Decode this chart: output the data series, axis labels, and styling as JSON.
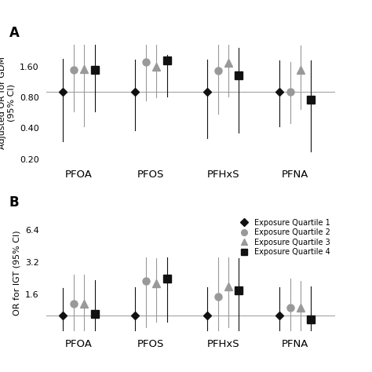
{
  "chemicals": [
    "PFOA",
    "PFOS",
    "PFHxS",
    "PFNA"
  ],
  "panel_A": {
    "ylabel": "Adjusted OR for GDM\n(95% CI)",
    "ref_line": 0.9,
    "ylim": [
      0.19,
      2.6
    ],
    "yticks": [
      0.4,
      0.8,
      1.6
    ],
    "ytick_labels": [
      "0.40",
      "0.80",
      "1.60"
    ],
    "extra_tick": 0.2,
    "extra_tick_label": "0.20",
    "data": {
      "PFOA": {
        "Q1": {
          "or": 0.9,
          "lo": 0.3,
          "hi": 1.9
        },
        "Q2": {
          "or": 1.48,
          "lo": 0.58,
          "hi": 2.8
        },
        "Q3": {
          "or": 1.5,
          "lo": 0.42,
          "hi": 2.9
        },
        "Q4": {
          "or": 1.48,
          "lo": 0.58,
          "hi": 2.8
        }
      },
      "PFOS": {
        "Q1": {
          "or": 0.9,
          "lo": 0.38,
          "hi": 1.85
        },
        "Q2": {
          "or": 1.75,
          "lo": 0.75,
          "hi": 2.95
        },
        "Q3": {
          "or": 1.6,
          "lo": 0.8,
          "hi": 2.75
        },
        "Q4": {
          "or": 1.82,
          "lo": 0.82,
          "hi": 2.05
        }
      },
      "PFHxS": {
        "Q1": {
          "or": 0.9,
          "lo": 0.32,
          "hi": 1.85
        },
        "Q2": {
          "or": 1.46,
          "lo": 0.55,
          "hi": 2.8
        },
        "Q3": {
          "or": 1.72,
          "lo": 0.82,
          "hi": 2.85
        },
        "Q4": {
          "or": 1.3,
          "lo": 0.36,
          "hi": 2.4
        }
      },
      "PFNA": {
        "Q1": {
          "or": 0.9,
          "lo": 0.42,
          "hi": 1.82
        },
        "Q2": {
          "or": 0.9,
          "lo": 0.45,
          "hi": 1.75
        },
        "Q3": {
          "or": 1.48,
          "lo": 0.62,
          "hi": 2.55
        },
        "Q4": {
          "or": 0.76,
          "lo": 0.24,
          "hi": 1.82
        }
      }
    }
  },
  "panel_B": {
    "ylabel": "OR for IGT (95% CI)",
    "ref_line": 1.0,
    "ylim": [
      0.72,
      9.0
    ],
    "yticks": [
      1.6,
      3.2,
      6.4
    ],
    "ytick_labels": [
      "1.6",
      "3.2",
      "6.4"
    ],
    "data": {
      "PFOA": {
        "Q1": {
          "or": 1.0,
          "lo": 0.55,
          "hi": 1.82
        },
        "Q2": {
          "or": 1.3,
          "lo": 0.6,
          "hi": 2.45
        },
        "Q3": {
          "or": 1.3,
          "lo": 0.58,
          "hi": 2.42
        },
        "Q4": {
          "or": 1.05,
          "lo": 0.52,
          "hi": 2.15
        }
      },
      "PFOS": {
        "Q1": {
          "or": 1.0,
          "lo": 0.52,
          "hi": 1.85
        },
        "Q2": {
          "or": 2.12,
          "lo": 0.78,
          "hi": 3.55
        },
        "Q3": {
          "or": 2.02,
          "lo": 0.88,
          "hi": 3.45
        },
        "Q4": {
          "or": 2.25,
          "lo": 0.88,
          "hi": 3.55
        }
      },
      "PFHxS": {
        "Q1": {
          "or": 1.0,
          "lo": 0.52,
          "hi": 1.85
        },
        "Q2": {
          "or": 1.52,
          "lo": 0.68,
          "hi": 3.55
        },
        "Q3": {
          "or": 1.88,
          "lo": 0.78,
          "hi": 3.55
        },
        "Q4": {
          "or": 1.72,
          "lo": 0.7,
          "hi": 3.45
        }
      },
      "PFNA": {
        "Q1": {
          "or": 1.0,
          "lo": 0.52,
          "hi": 1.85
        },
        "Q2": {
          "or": 1.2,
          "lo": 0.56,
          "hi": 2.22
        },
        "Q3": {
          "or": 1.2,
          "lo": 0.52,
          "hi": 2.12
        },
        "Q4": {
          "or": 0.92,
          "lo": 0.42,
          "hi": 1.88
        }
      }
    }
  },
  "quartile_styles": {
    "Q1": {
      "color": "#111111",
      "marker": "D",
      "ms": 5.5,
      "mfc": "#111111"
    },
    "Q2": {
      "color": "#999999",
      "marker": "o",
      "ms": 6.5,
      "mfc": "#999999"
    },
    "Q3": {
      "color": "#999999",
      "marker": "^",
      "ms": 6.5,
      "mfc": "#999999"
    },
    "Q4": {
      "color": "#111111",
      "marker": "s",
      "ms": 6.5,
      "mfc": "#111111"
    }
  },
  "legend_labels": [
    "Exposure Quartile 1",
    "Exposure Quartile 2",
    "Exposure Quartile 3",
    "Exposure Quartile 4"
  ],
  "offsets": [
    -0.22,
    -0.07,
    0.07,
    0.22
  ],
  "bg_color": "#ffffff",
  "line_color": "#aaaaaa",
  "errorbar_lw": 0.8
}
